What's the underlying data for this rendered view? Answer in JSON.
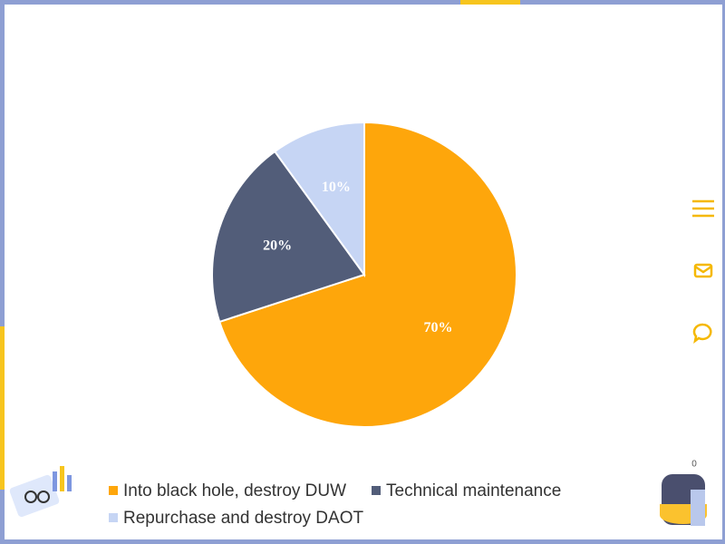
{
  "chart_data": {
    "type": "pie",
    "categories": [
      "Into black hole, destroy DUW",
      "Technical maintenance",
      "Repurchase and destroy DAOT"
    ],
    "values": [
      70,
      20,
      10
    ],
    "value_labels": [
      "70%",
      "20%",
      "10%"
    ],
    "colors": [
      "#fea60b",
      "#525d79",
      "#c6d5f4"
    ],
    "start_angle": "top",
    "direction": "clockwise"
  },
  "badge": "0"
}
